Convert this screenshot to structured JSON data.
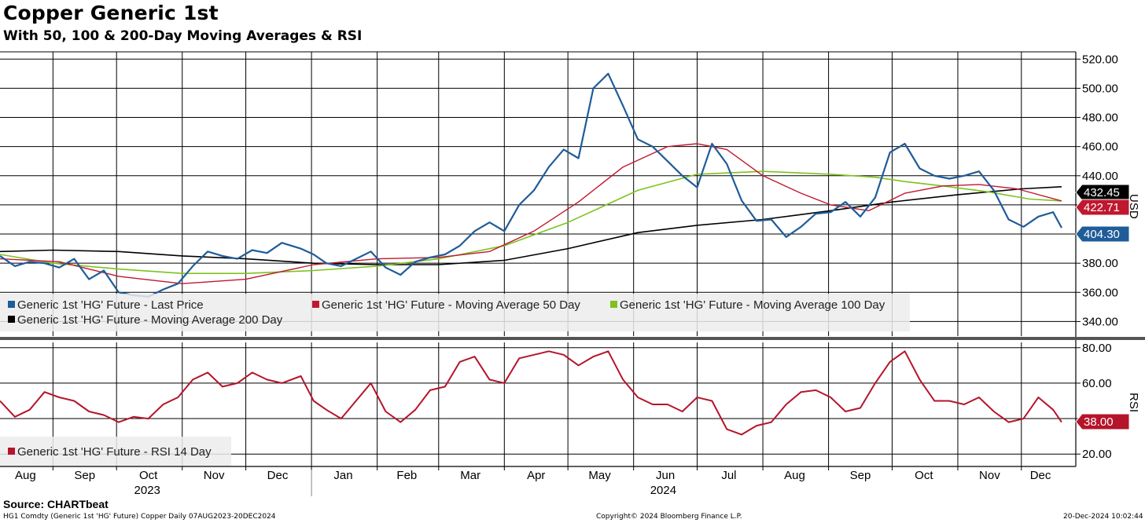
{
  "header": {
    "title": "Copper Generic 1st",
    "subtitle": "With 50, 100 & 200-Day Moving Averages & RSI"
  },
  "footer": {
    "source": "Source: CHARTbeat",
    "ticker_info": "HG1 Comdty (Generic 1st 'HG' Future) Copper  Daily 07AUG2023-20DEC2024",
    "copyright": "Copyright© 2024 Bloomberg Finance L.P.",
    "timestamp": "20-Dec-2024 10:02:44"
  },
  "colors": {
    "last_price": "#1f5c99",
    "ma50": "#c0182f",
    "ma100": "#7dc21e",
    "ma200": "#000000",
    "rsi": "#b5152a",
    "grid": "#000000",
    "legend_bg": "#ececec"
  },
  "chart_data": [
    {
      "type": "line",
      "panel": "price",
      "ylabel": "USD",
      "ylim": [
        330,
        525
      ],
      "yticks": [
        "340.00",
        "360.00",
        "380.00",
        "400.00",
        "420.00",
        "440.00",
        "460.00",
        "480.00",
        "500.00",
        "520.00"
      ],
      "x_months": [
        "Aug",
        "Sep",
        "Oct",
        "Nov",
        "Dec",
        "Jan",
        "Feb",
        "Mar",
        "Apr",
        "May",
        "Jun",
        "Jul",
        "Aug",
        "Sep",
        "Oct",
        "Nov",
        "Dec"
      ],
      "x_years": [
        "2023",
        "2024"
      ],
      "x_range": [
        "2023-08-07",
        "2024-12-20"
      ],
      "legend": {
        "placement": "bottom-left",
        "entries": [
          "Generic 1st 'HG' Future - Last Price",
          "Generic 1st 'HG' Future - Moving Average 50 Day",
          "Generic 1st 'HG' Future - Moving Average 100 Day",
          "Generic 1st 'HG' Future - Moving Average 200 Day"
        ]
      },
      "last_value_tags": [
        "432.45",
        "422.71",
        "404.30"
      ],
      "series": [
        {
          "name": "Generic 1st 'HG' Future - Last Price",
          "x": [
            "2023-08-07",
            "2023-08-14",
            "2023-08-21",
            "2023-08-28",
            "2023-09-04",
            "2023-09-11",
            "2023-09-18",
            "2023-09-25",
            "2023-10-02",
            "2023-10-09",
            "2023-10-16",
            "2023-10-23",
            "2023-10-30",
            "2023-11-06",
            "2023-11-13",
            "2023-11-20",
            "2023-11-27",
            "2023-12-04",
            "2023-12-11",
            "2023-12-18",
            "2023-12-27",
            "2024-01-02",
            "2024-01-08",
            "2024-01-15",
            "2024-01-22",
            "2024-01-29",
            "2024-02-05",
            "2024-02-12",
            "2024-02-19",
            "2024-02-26",
            "2024-03-04",
            "2024-03-11",
            "2024-03-18",
            "2024-03-25",
            "2024-04-01",
            "2024-04-08",
            "2024-04-15",
            "2024-04-22",
            "2024-04-29",
            "2024-05-06",
            "2024-05-13",
            "2024-05-20",
            "2024-05-27",
            "2024-06-03",
            "2024-06-10",
            "2024-06-17",
            "2024-06-24",
            "2024-07-01",
            "2024-07-08",
            "2024-07-15",
            "2024-07-22",
            "2024-07-29",
            "2024-08-05",
            "2024-08-12",
            "2024-08-19",
            "2024-08-26",
            "2024-09-02",
            "2024-09-09",
            "2024-09-16",
            "2024-09-23",
            "2024-09-30",
            "2024-10-07",
            "2024-10-14",
            "2024-10-21",
            "2024-10-28",
            "2024-11-04",
            "2024-11-11",
            "2024-11-18",
            "2024-11-25",
            "2024-12-02",
            "2024-12-09",
            "2024-12-16",
            "2024-12-20"
          ],
          "values": [
            385,
            378,
            381,
            380,
            377,
            383,
            369,
            375,
            360,
            358,
            357,
            362,
            366,
            378,
            388,
            385,
            383,
            389,
            387,
            394,
            390,
            386,
            380,
            378,
            383,
            388,
            377,
            372,
            381,
            384,
            386,
            392,
            402,
            408,
            402,
            420,
            430,
            446,
            458,
            452,
            500,
            510,
            488,
            465,
            460,
            450,
            440,
            432,
            462,
            448,
            423,
            409,
            410,
            398,
            405,
            414,
            415,
            422,
            412,
            425,
            456,
            462,
            445,
            440,
            438,
            440,
            443,
            430,
            410,
            405,
            412,
            415,
            404.3
          ]
        },
        {
          "name": "Generic 1st 'HG' Future - Moving Average 50 Day",
          "x": [
            "2023-08-07",
            "2023-09-04",
            "2023-10-02",
            "2023-11-01",
            "2023-12-01",
            "2024-01-02",
            "2024-02-01",
            "2024-03-01",
            "2024-03-25",
            "2024-04-15",
            "2024-05-06",
            "2024-05-27",
            "2024-06-17",
            "2024-07-01",
            "2024-07-15",
            "2024-08-01",
            "2024-08-19",
            "2024-09-02",
            "2024-09-20",
            "2024-10-07",
            "2024-10-25",
            "2024-11-11",
            "2024-11-29",
            "2024-12-20"
          ],
          "values": [
            383,
            381,
            371,
            366,
            369,
            379,
            383,
            384,
            388,
            402,
            422,
            446,
            460,
            462,
            458,
            440,
            428,
            420,
            416,
            428,
            433,
            434,
            431,
            422.71
          ]
        },
        {
          "name": "Generic 1st 'HG' Future - Moving Average 100 Day",
          "x": [
            "2023-08-07",
            "2023-09-01",
            "2023-10-02",
            "2023-11-01",
            "2023-12-01",
            "2024-01-02",
            "2024-02-01",
            "2024-03-01",
            "2024-04-01",
            "2024-05-01",
            "2024-06-03",
            "2024-07-01",
            "2024-08-01",
            "2024-09-02",
            "2024-09-23",
            "2024-10-07",
            "2024-10-25",
            "2024-11-15",
            "2024-12-05",
            "2024-12-20"
          ],
          "values": [
            386,
            380,
            376,
            373,
            373,
            375,
            378,
            383,
            392,
            408,
            430,
            441,
            443,
            441,
            439,
            436,
            433,
            429,
            424,
            422.71
          ]
        },
        {
          "name": "Generic 1st 'HG' Future - Moving Average 200 Day",
          "x": [
            "2023-08-07",
            "2023-09-01",
            "2023-10-02",
            "2023-11-01",
            "2023-12-01",
            "2024-01-02",
            "2024-02-01",
            "2024-03-01",
            "2024-04-01",
            "2024-05-01",
            "2024-06-03",
            "2024-07-01",
            "2024-08-01",
            "2024-09-02",
            "2024-10-01",
            "2024-11-01",
            "2024-12-01",
            "2024-12-20"
          ],
          "values": [
            388,
            389,
            388,
            385,
            383,
            380,
            379,
            379,
            382,
            390,
            401,
            406,
            410,
            416,
            422,
            427,
            431,
            432.45
          ]
        }
      ]
    },
    {
      "type": "line",
      "panel": "rsi",
      "ylabel": "RSI",
      "ylim": [
        13,
        83
      ],
      "yticks": [
        "20.00",
        "40.00",
        "60.00",
        "80.00"
      ],
      "legend": {
        "placement": "bottom-left",
        "entries": [
          "Generic 1st 'HG' Future - RSI 14 Day"
        ]
      },
      "last_value_tags": [
        "38.00"
      ],
      "series": [
        {
          "name": "Generic 1st 'HG' Future - RSI 14 Day",
          "x": [
            "2023-08-07",
            "2023-08-14",
            "2023-08-21",
            "2023-08-28",
            "2023-09-04",
            "2023-09-11",
            "2023-09-18",
            "2023-09-25",
            "2023-10-02",
            "2023-10-09",
            "2023-10-16",
            "2023-10-23",
            "2023-10-30",
            "2023-11-06",
            "2023-11-13",
            "2023-11-20",
            "2023-11-27",
            "2023-12-04",
            "2023-12-11",
            "2023-12-18",
            "2023-12-27",
            "2024-01-02",
            "2024-01-08",
            "2024-01-15",
            "2024-01-22",
            "2024-01-29",
            "2024-02-05",
            "2024-02-12",
            "2024-02-19",
            "2024-02-26",
            "2024-03-04",
            "2024-03-11",
            "2024-03-18",
            "2024-03-25",
            "2024-04-01",
            "2024-04-08",
            "2024-04-15",
            "2024-04-22",
            "2024-04-29",
            "2024-05-06",
            "2024-05-13",
            "2024-05-20",
            "2024-05-27",
            "2024-06-03",
            "2024-06-10",
            "2024-06-17",
            "2024-06-24",
            "2024-07-01",
            "2024-07-08",
            "2024-07-15",
            "2024-07-22",
            "2024-07-29",
            "2024-08-05",
            "2024-08-12",
            "2024-08-19",
            "2024-08-26",
            "2024-09-02",
            "2024-09-09",
            "2024-09-16",
            "2024-09-23",
            "2024-09-30",
            "2024-10-07",
            "2024-10-14",
            "2024-10-21",
            "2024-10-28",
            "2024-11-04",
            "2024-11-11",
            "2024-11-18",
            "2024-11-25",
            "2024-12-02",
            "2024-12-09",
            "2024-12-16",
            "2024-12-20"
          ],
          "values": [
            50,
            41,
            45,
            55,
            52,
            50,
            44,
            42,
            38,
            41,
            40,
            48,
            52,
            62,
            66,
            58,
            60,
            66,
            62,
            60,
            64,
            50,
            45,
            40,
            50,
            60,
            44,
            38,
            45,
            56,
            58,
            72,
            75,
            62,
            60,
            74,
            76,
            78,
            76,
            70,
            75,
            78,
            62,
            52,
            48,
            48,
            44,
            52,
            50,
            34,
            31,
            36,
            38,
            48,
            55,
            56,
            52,
            44,
            46,
            60,
            72,
            78,
            62,
            50,
            50,
            48,
            52,
            44,
            38,
            40,
            52,
            45,
            38.0
          ]
        }
      ]
    }
  ]
}
